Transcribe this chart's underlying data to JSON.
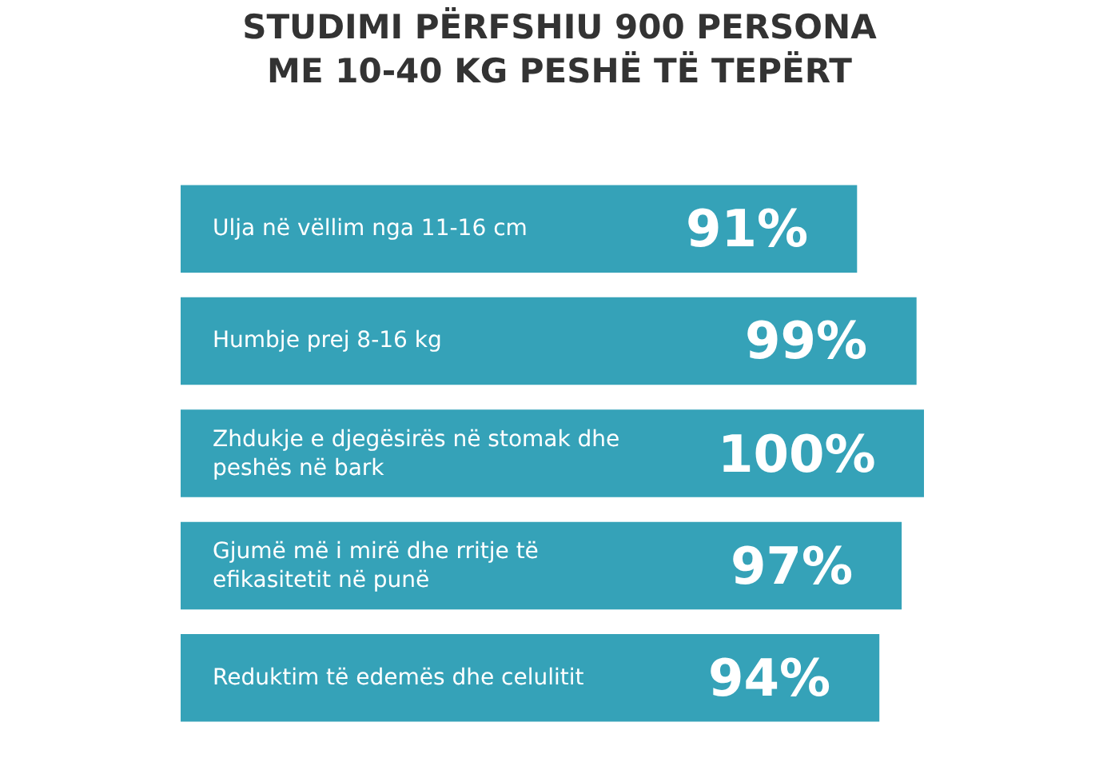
{
  "chart_data": {
    "type": "bar",
    "orientation": "horizontal",
    "title": "STUDIMI PËRFSHIU 900 PERSONA\nME 10-40 KG PESHË TË TEPËRT",
    "categories": [
      "Ulja në vëllim nga 11-16 cm",
      "Humbje prej 8-16 kg",
      "Zhdukje e djegësirës në stomak dhe peshës në bark",
      "Gjumë më i mirë dhe rritje të efikasitetit në punë",
      "Reduktim të edemës dhe celulitit"
    ],
    "values": [
      91,
      99,
      100,
      97,
      94
    ],
    "value_labels": [
      "91%",
      "99%",
      "100%",
      "97%",
      "94%"
    ],
    "color": "#35a2b8"
  }
}
